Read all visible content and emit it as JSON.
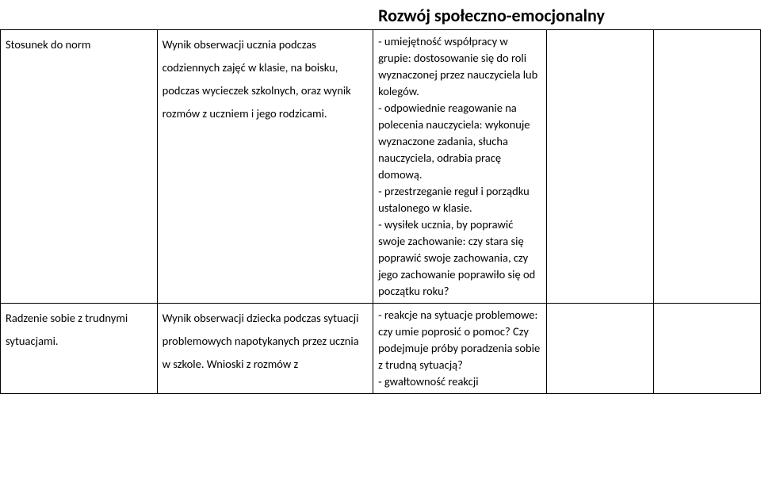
{
  "title": "Rozwój społeczno-emocjonalny",
  "rows": [
    {
      "c1": "Stosunek do norm",
      "c2": "Wynik obserwacji ucznia podczas codziennych zajęć w klasie, na boisku, podczas wycieczek szkolnych, oraz wynik rozmów z uczniem i jego rodzicami.",
      "c3": "- umiejętność współpracy w grupie: dostosowanie się do roli wyznaczonej przez nauczyciela lub kolegów.\n- odpowiednie reagowanie na polecenia nauczyciela: wykonuje wyznaczone zadania, słucha nauczyciela, odrabia pracę domową.\n- przestrzeganie reguł i porządku ustalonego w klasie.\n- wysiłek ucznia, by poprawić swoje zachowanie: czy stara się poprawić swoje zachowania, czy jego zachowanie poprawiło się od początku roku?",
      "c4": "",
      "c5": ""
    },
    {
      "c1": "Radzenie sobie z trudnymi sytuacjami.",
      "c2": "Wynik obserwacji dziecka podczas sytuacji problemowych napotykanych przez ucznia w szkole. Wnioski z rozmów z",
      "c3": "- reakcje na sytuacje problemowe: czy umie poprosić o pomoc? Czy podejmuje próby poradzenia sobie z trudną sytuacją?\n- gwałtowność reakcji",
      "c4": "",
      "c5": ""
    }
  ]
}
